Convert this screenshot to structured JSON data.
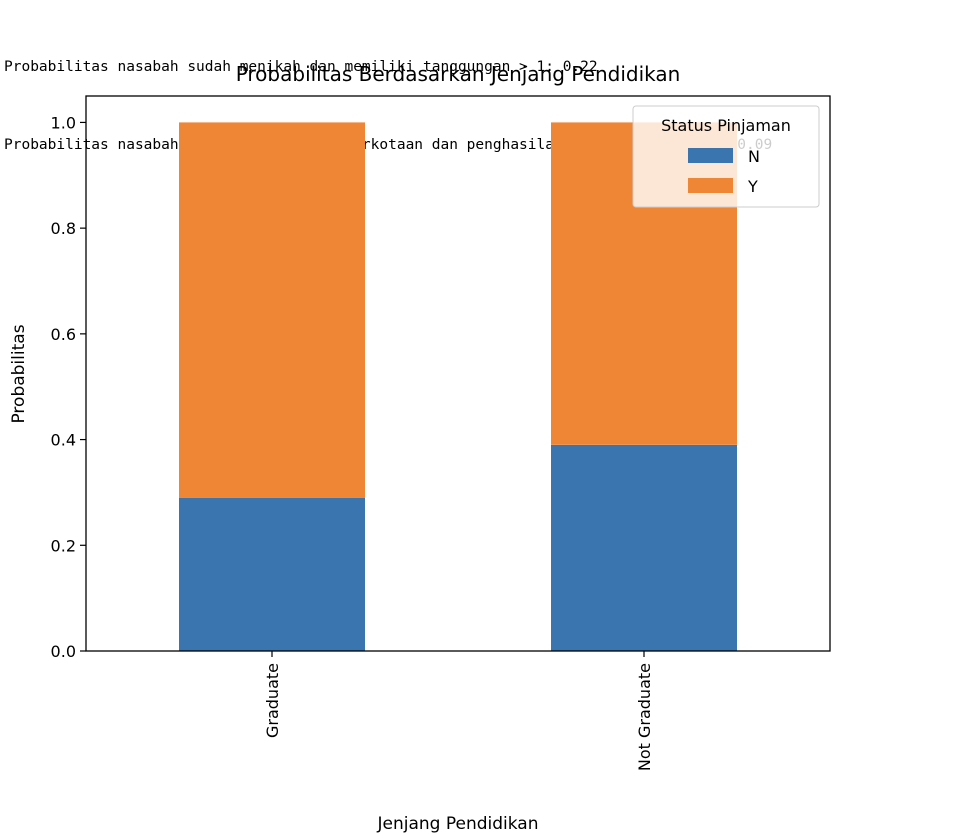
{
  "console_output": [
    "Probabilitas nasabah sudah menikah dan memiliki tanggungan > 1: 0.22",
    "Probabilitas nasabah memiliki rumah di perkotaan dan penghasilan di atas rata-rata: 0.09"
  ],
  "chart_data": {
    "type": "bar",
    "stacked": true,
    "title": "Probabilitas Berdasarkan Jenjang Pendidikan",
    "xlabel": "Jenjang Pendidikan",
    "ylabel": "Probabilitas",
    "categories": [
      "Graduate",
      "Not Graduate"
    ],
    "series": [
      {
        "name": "N",
        "values": [
          0.29,
          0.39
        ],
        "color": "#3b75af"
      },
      {
        "name": "Y",
        "values": [
          0.71,
          0.61
        ],
        "color": "#ef8636"
      }
    ],
    "ylim": [
      0,
      1.05
    ],
    "yticks": [
      "0.0",
      "0.2",
      "0.4",
      "0.6",
      "0.8",
      "1.0"
    ],
    "legend": {
      "title": "Status Pinjaman",
      "placement": "top-right"
    },
    "grid": false
  }
}
